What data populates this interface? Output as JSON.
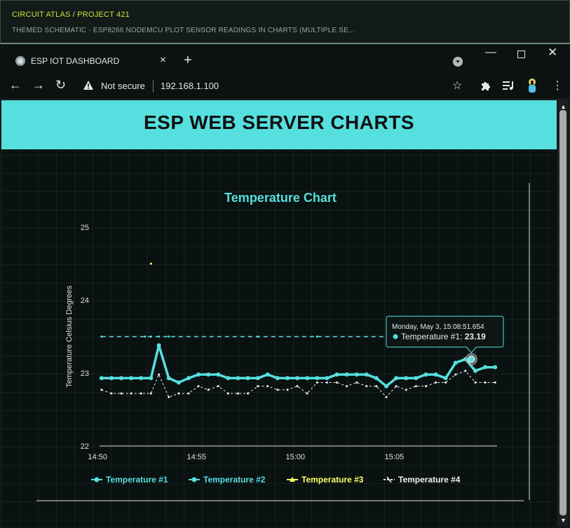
{
  "frame": {
    "crumb": "CIRCUIT ATLAS / PROJECT 421",
    "subtitle": "THEMED SCHEMATIC · ESP8266 NODEMCU PLOT SENSOR READINGS IN CHARTS (MULTIPLE SE..."
  },
  "browser": {
    "tab_title": "ESP IOT DASHBOARD",
    "tab_close": "×",
    "new_tab": "+",
    "security_text": "Not secure",
    "url": "192.168.1.100"
  },
  "page": {
    "banner_title": "ESP WEB SERVER CHARTS"
  },
  "colors": {
    "accent": "#56dfdf",
    "series_2": "#56dfdf",
    "series_3": "#ffff66",
    "series_4": "#ffffff"
  },
  "chart_data": {
    "type": "line",
    "title": "Temperature Chart",
    "ylabel": "Temperature Celsius Degrees",
    "xlabel": "",
    "ylim": [
      22,
      25
    ],
    "yticks": [
      "22",
      "23",
      "24",
      "25"
    ],
    "xticks": [
      "14:50",
      "14:55",
      "15:00",
      "15:05"
    ],
    "xtick_minutes": [
      50,
      55,
      60,
      65
    ],
    "xlim_minutes": [
      50.1,
      70.2
    ],
    "series": [
      {
        "name": "Temperature #1",
        "x": [
          50.2,
          50.7,
          51.2,
          51.7,
          52.2,
          52.7,
          53.1,
          53.6,
          54.1,
          54.6,
          55.1,
          55.6,
          56.1,
          56.6,
          57.1,
          57.6,
          58.1,
          58.6,
          59.1,
          59.6,
          60.1,
          60.6,
          61.1,
          61.6,
          62.1,
          62.6,
          63.1,
          63.6,
          64.1,
          64.6,
          65.1,
          65.6,
          66.1,
          66.6,
          67.1,
          67.6,
          68.1,
          68.6,
          69.1,
          69.6,
          70.1
        ],
        "y": [
          22.93,
          22.93,
          22.93,
          22.93,
          22.93,
          22.93,
          23.38,
          22.93,
          22.87,
          22.93,
          22.98,
          22.98,
          22.98,
          22.93,
          22.93,
          22.93,
          22.93,
          22.98,
          22.93,
          22.93,
          22.93,
          22.93,
          22.93,
          22.93,
          22.98,
          22.98,
          22.98,
          22.98,
          22.93,
          22.82,
          22.93,
          22.93,
          22.93,
          22.98,
          22.98,
          22.93,
          23.14,
          23.19,
          23.03,
          23.08,
          23.08
        ]
      },
      {
        "name": "Temperature #2",
        "x": [
          50.2,
          52.4,
          52.7,
          53.1,
          53.6,
          58.1,
          61.1,
          65.1,
          68.1,
          68.6,
          69.6
        ],
        "y": [
          23.5,
          23.5,
          23.5,
          23.5,
          23.5,
          23.5,
          23.5,
          23.5,
          23.5,
          23.5,
          23.5
        ]
      },
      {
        "name": "Temperature #3",
        "x": [
          52.7
        ],
        "y": [
          24.5
        ]
      },
      {
        "name": "Temperature #4",
        "x": [
          50.2,
          50.7,
          51.2,
          51.7,
          52.2,
          52.7,
          53.1,
          53.6,
          54.1,
          54.6,
          55.1,
          55.6,
          56.1,
          56.6,
          57.1,
          57.6,
          58.1,
          58.6,
          59.1,
          59.6,
          60.1,
          60.6,
          61.1,
          61.6,
          62.1,
          62.6,
          63.1,
          63.6,
          64.1,
          64.6,
          65.1,
          65.6,
          66.1,
          66.6,
          67.1,
          67.6,
          68.1,
          68.6,
          69.1,
          69.6,
          70.1
        ],
        "y": [
          22.77,
          22.72,
          22.72,
          22.72,
          22.72,
          22.72,
          22.98,
          22.67,
          22.72,
          22.72,
          22.82,
          22.77,
          22.82,
          22.72,
          22.72,
          22.72,
          22.82,
          22.82,
          22.77,
          22.77,
          22.82,
          22.72,
          22.87,
          22.87,
          22.87,
          22.82,
          22.87,
          22.82,
          22.82,
          22.67,
          22.82,
          22.77,
          22.82,
          22.82,
          22.87,
          22.87,
          22.98,
          23.03,
          22.87,
          22.87,
          22.87
        ]
      }
    ],
    "tooltip": {
      "date": "Monday, May 3, 15:08:51.654",
      "series": "Temperature #1",
      "value": "23.19",
      "x_minute": 68.9,
      "y": 23.19
    },
    "legend_position": "bottom"
  }
}
